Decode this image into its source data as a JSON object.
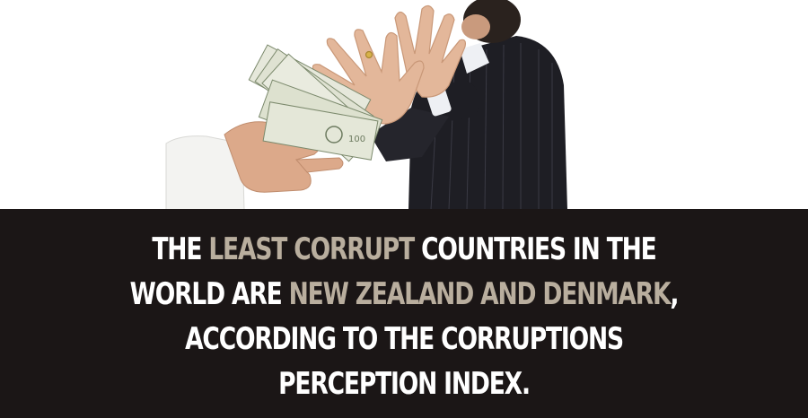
{
  "image": {
    "alt_subject": "hand refusing offered cash",
    "icons": [
      "banknote-stack-icon"
    ]
  },
  "caption": {
    "lines": [
      [
        {
          "text": "THE ",
          "style": "white"
        },
        {
          "text": "LEAST CORRUPT",
          "style": "highlight"
        },
        {
          "text": " COUNTRIES IN THE",
          "style": "white"
        }
      ],
      [
        {
          "text": "WORLD ARE ",
          "style": "white"
        },
        {
          "text": "NEW ZEALAND AND DENMARK",
          "style": "highlight"
        },
        {
          "text": ",",
          "style": "white"
        }
      ],
      [
        {
          "text": "ACCORDING TO THE CORRUPTIONS",
          "style": "white"
        }
      ],
      [
        {
          "text": "PERCEPTION INDEX.",
          "style": "white"
        }
      ]
    ],
    "colors": {
      "text": "#ffffff",
      "highlight": "#b9ae9e",
      "band": "#1b1616"
    }
  }
}
